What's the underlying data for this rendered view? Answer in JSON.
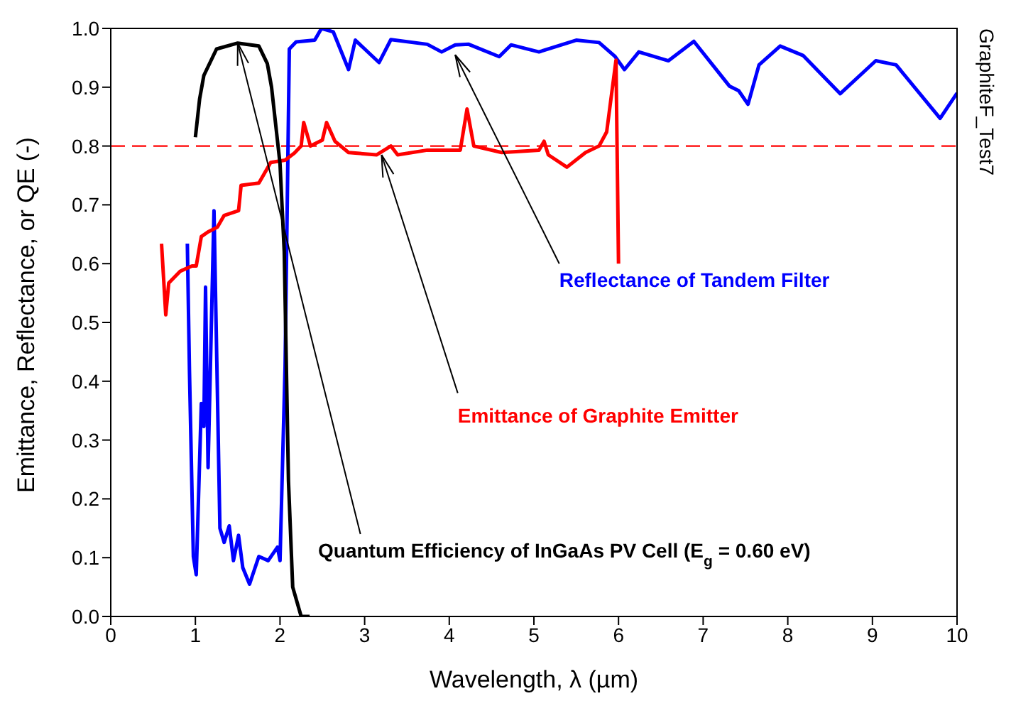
{
  "chart_data": {
    "type": "line",
    "xlabel": "Wavelength, λ (µm)",
    "ylabel": "Emittance, Reflectance, or QE (-)",
    "xlim": [
      0,
      10
    ],
    "xticks": [
      0,
      1,
      2,
      3,
      4,
      5,
      6,
      7,
      8,
      9,
      10
    ],
    "ylim": [
      0,
      1
    ],
    "yticks": [
      {
        "value": 0,
        "label": "0.0"
      },
      {
        "value": 0.1,
        "label": "0.1"
      },
      {
        "value": 0.2,
        "label": "0.2"
      },
      {
        "value": 0.3,
        "label": "0.3"
      },
      {
        "value": 0.4,
        "label": "0.4"
      },
      {
        "value": 0.5,
        "label": "0.5"
      },
      {
        "value": 0.6,
        "label": "0.6"
      },
      {
        "value": 0.7,
        "label": "0.7"
      },
      {
        "value": 0.8,
        "label": "0.8"
      },
      {
        "value": 0.9,
        "label": "0.9"
      },
      {
        "value": 1,
        "label": "1.0"
      }
    ],
    "grid": false,
    "legend": false,
    "marker": "none",
    "line_style": "solid",
    "series": [
      {
        "color": "#0000ff",
        "x": [
          0.905,
          0.93,
          0.976,
          1.01,
          1.07,
          1.1,
          1.12,
          1.15,
          1.22,
          1.29,
          1.34,
          1.4,
          1.45,
          1.51,
          1.56,
          1.64,
          1.75,
          1.86,
          1.97,
          2.0,
          2.06,
          2.11,
          2.19,
          2.41,
          2.49,
          2.63,
          2.81,
          2.89,
          3.17,
          3.31,
          3.74,
          3.91,
          4.07,
          4.23,
          4.59,
          4.73,
          5.06,
          5.5,
          5.77,
          5.96,
          6.07,
          6.24,
          6.59,
          6.89,
          7.31,
          7.42,
          7.53,
          7.66,
          7.91,
          8.18,
          8.62,
          9.04,
          9.28,
          9.8,
          10.0
        ],
        "values": [
          0.634,
          0.418,
          0.102,
          0.071,
          0.362,
          0.323,
          0.56,
          0.253,
          0.69,
          0.15,
          0.126,
          0.154,
          0.095,
          0.138,
          0.083,
          0.055,
          0.102,
          0.095,
          0.118,
          0.095,
          0.426,
          0.965,
          0.977,
          0.98,
          1.0,
          0.994,
          0.93,
          0.98,
          0.942,
          0.981,
          0.973,
          0.96,
          0.972,
          0.973,
          0.952,
          0.972,
          0.96,
          0.98,
          0.976,
          0.952,
          0.93,
          0.96,
          0.945,
          0.978,
          0.902,
          0.894,
          0.871,
          0.938,
          0.97,
          0.954,
          0.889,
          0.945,
          0.938,
          0.847,
          0.89
        ]
      },
      {
        "color": "#ff0000",
        "x": [
          0.6,
          0.65,
          0.685,
          0.82,
          0.96,
          1.01,
          1.07,
          1.15,
          1.26,
          1.34,
          1.51,
          1.54,
          1.75,
          1.89,
          2.06,
          2.17,
          2.25,
          2.28,
          2.36,
          2.5,
          2.55,
          2.65,
          2.81,
          3.14,
          3.31,
          3.39,
          3.74,
          4.13,
          4.21,
          4.29,
          4.62,
          5.06,
          5.12,
          5.17,
          5.39,
          5.61,
          5.77,
          5.86,
          5.97,
          6.0
        ],
        "values": [
          0.634,
          0.513,
          0.567,
          0.587,
          0.596,
          0.596,
          0.646,
          0.654,
          0.662,
          0.682,
          0.69,
          0.733,
          0.737,
          0.772,
          0.776,
          0.788,
          0.8,
          0.84,
          0.8,
          0.81,
          0.84,
          0.808,
          0.789,
          0.785,
          0.8,
          0.785,
          0.793,
          0.793,
          0.863,
          0.8,
          0.789,
          0.793,
          0.808,
          0.785,
          0.764,
          0.789,
          0.8,
          0.824,
          0.946,
          0.6
        ]
      },
      {
        "color": "#000000",
        "x": [
          1.0,
          1.05,
          1.1,
          1.25,
          1.5,
          1.75,
          1.85,
          1.9,
          2.0,
          2.05,
          2.1,
          2.15,
          2.25,
          2.35
        ],
        "values": [
          0.815,
          0.88,
          0.92,
          0.965,
          0.975,
          0.97,
          0.94,
          0.9,
          0.77,
          0.62,
          0.23,
          0.05,
          0.0,
          0.0
        ]
      }
    ],
    "ref_lines": [
      {
        "axis": "y",
        "value": 0.8,
        "color": "#ff0000",
        "line_style": "dashed"
      }
    ],
    "annotations": [
      {
        "text": "Reflectance of Tandem Filter",
        "x": 4.07,
        "y": 0.955
      },
      {
        "text": "Emittance of Graphite Emitter",
        "x": 3.2,
        "y": 0.785
      },
      {
        "text": "Quantum Efficiency of InGaAs PV Cell (E$_{g}$ = 0.60 eV)",
        "x": 1.5,
        "y": 0.975
      },
      "GraphiteF_Test7"
    ]
  }
}
